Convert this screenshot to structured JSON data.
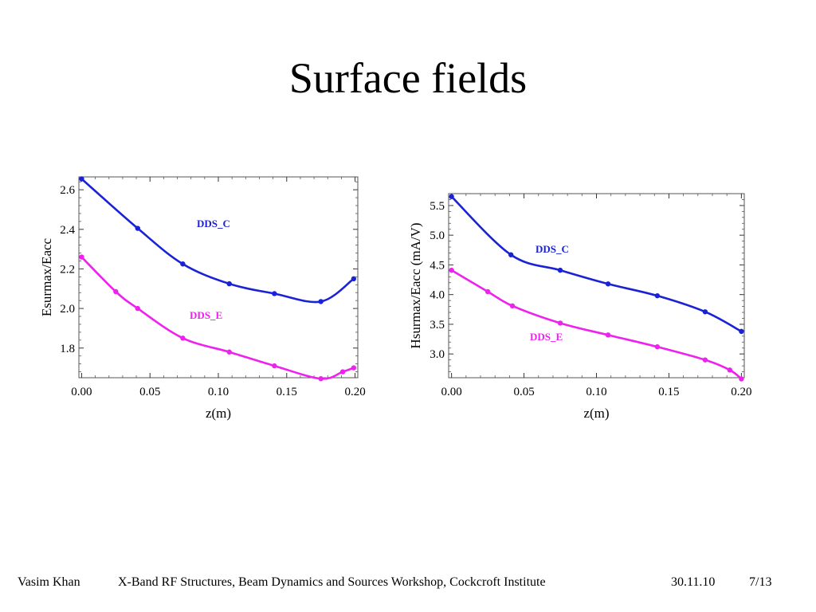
{
  "slide": {
    "title": "Surface fields"
  },
  "footer": {
    "author": "Vasim Khan",
    "event": "X-Band RF Structures, Beam Dynamics and Sources Workshop, Cockcroft Institute",
    "date": "30.11.10",
    "page": "7/13"
  },
  "colors": {
    "dds_c": "#1a22d6",
    "dds_e": "#ee22ee"
  },
  "chart_data": [
    {
      "type": "line",
      "xlabel": "z(m)",
      "ylabel": "Esurmax/Eacc",
      "xlim": [
        -0.002,
        0.202
      ],
      "ylim": [
        1.65,
        2.665
      ],
      "xticks": [
        0.0,
        0.05,
        0.1,
        0.15,
        0.2
      ],
      "xtick_labels": [
        "0.00",
        "0.05",
        "0.10",
        "0.15",
        "0.20"
      ],
      "yticks": [
        1.8,
        2.0,
        2.2,
        2.4,
        2.6
      ],
      "ytick_labels": [
        "1.8",
        "2.0",
        "2.2",
        "2.4",
        "2.6"
      ],
      "grid": false,
      "series": [
        {
          "name": "DDS_C",
          "color": "#1a22d6",
          "x": [
            0.0,
            0.041,
            0.074,
            0.108,
            0.141,
            0.175,
            0.199
          ],
          "y": [
            2.655,
            2.405,
            2.225,
            2.125,
            2.075,
            2.035,
            2.15
          ]
        },
        {
          "name": "DDS_E",
          "color": "#ee22ee",
          "x": [
            0.0,
            0.025,
            0.041,
            0.074,
            0.108,
            0.141,
            0.175,
            0.191,
            0.199
          ],
          "y": [
            2.26,
            2.085,
            2.0,
            1.85,
            1.78,
            1.71,
            1.645,
            1.68,
            1.7
          ]
        }
      ]
    },
    {
      "type": "line",
      "xlabel": "z(m)",
      "ylabel": "Hsurmax/Eacc (mA/V)",
      "xlim": [
        -0.002,
        0.202
      ],
      "ylim": [
        2.6,
        5.7
      ],
      "xticks": [
        0.0,
        0.05,
        0.1,
        0.15,
        0.2
      ],
      "xtick_labels": [
        "0.00",
        "0.05",
        "0.10",
        "0.15",
        "0.20"
      ],
      "yticks": [
        3.0,
        3.5,
        4.0,
        4.5,
        5.0,
        5.5
      ],
      "ytick_labels": [
        "3.0",
        "3.5",
        "4.0",
        "4.5",
        "5.0",
        "5.5"
      ],
      "grid": false,
      "series": [
        {
          "name": "DDS_C",
          "color": "#1a22d6",
          "x": [
            0.0,
            0.041,
            0.075,
            0.108,
            0.142,
            0.175,
            0.2
          ],
          "y": [
            5.65,
            4.67,
            4.41,
            4.18,
            3.98,
            3.71,
            3.38
          ]
        },
        {
          "name": "DDS_E",
          "color": "#ee22ee",
          "x": [
            0.0,
            0.025,
            0.042,
            0.075,
            0.108,
            0.142,
            0.175,
            0.192,
            0.2
          ],
          "y": [
            4.41,
            4.05,
            3.81,
            3.52,
            3.32,
            3.12,
            2.9,
            2.73,
            2.58
          ]
        }
      ]
    }
  ]
}
